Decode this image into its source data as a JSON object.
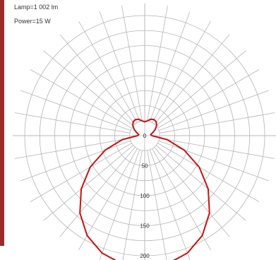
{
  "info": {
    "lamp": "Lamp=1 002 lm",
    "power": "Power=15 W"
  },
  "colors": {
    "grid": "#b5b5b5",
    "curve": "#cc1111",
    "label": "#333333",
    "accent_bar": "#9b2b2b"
  },
  "chart_data": {
    "type": "polar",
    "title": "",
    "radial_ticks": [
      0,
      50,
      100,
      150,
      200
    ],
    "radial_tick_labels": [
      "0",
      "50",
      "100",
      "150",
      "200"
    ],
    "rmax": 220,
    "ring_step": 25,
    "spoke_step_deg": 10,
    "zero_direction": "down",
    "series": [
      {
        "angles_deg": [
          0,
          10,
          20,
          30,
          40,
          50,
          60,
          70,
          80,
          90,
          100,
          110,
          120,
          130,
          140,
          150,
          160,
          170,
          180
        ],
        "values": [
          220,
          217,
          208,
          192,
          168,
          138,
          105,
          70,
          38,
          12,
          10,
          14,
          20,
          26,
          30,
          31,
          29,
          25,
          23
        ]
      }
    ]
  }
}
